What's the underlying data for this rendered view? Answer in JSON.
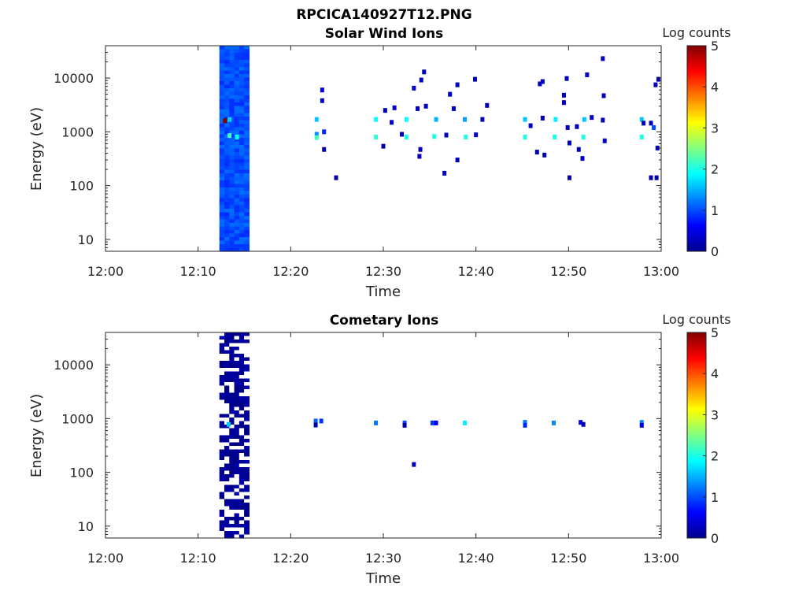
{
  "figure": {
    "title": "RPCICA140927T12.PNG"
  },
  "chart_data": [
    {
      "type": "heatmap",
      "title": "Solar Wind Ions",
      "xlabel": "Time",
      "ylabel": "Energy (eV)",
      "x_ticks": [
        "12:00",
        "12:10",
        "12:20",
        "12:30",
        "12:40",
        "12:50",
        "13:00"
      ],
      "xlim": [
        "12:00",
        "13:00"
      ],
      "y_ticks": [
        "10",
        "100",
        "1000",
        "10000"
      ],
      "ylim": [
        6,
        40000
      ],
      "y_scale": "log",
      "colorbar": {
        "label": "Log counts",
        "range": [
          0,
          5
        ],
        "ticks": [
          "0",
          "1",
          "2",
          "3",
          "4",
          "5"
        ],
        "colormap": "jet"
      },
      "band": {
        "start_min": 12.3,
        "end_min": 15.5,
        "level": 1.0
      },
      "points": [
        {
          "t": 12.9,
          "e": 1600,
          "c": 5
        },
        {
          "t": 13.4,
          "e": 1700,
          "c": 1.7
        },
        {
          "t": 13.4,
          "e": 850,
          "c": 2.2
        },
        {
          "t": 14.2,
          "e": 800,
          "c": 1.9
        },
        {
          "t": 22.8,
          "e": 1700,
          "c": 1.6
        },
        {
          "t": 22.8,
          "e": 900,
          "c": 1.3
        },
        {
          "t": 22.8,
          "e": 780,
          "c": 2.2
        },
        {
          "t": 23.4,
          "e": 6000,
          "c": 0.5
        },
        {
          "t": 23.4,
          "e": 3800,
          "c": 0.4
        },
        {
          "t": 23.6,
          "e": 1000,
          "c": 0.8
        },
        {
          "t": 23.6,
          "e": 470,
          "c": 0.2
        },
        {
          "t": 24.9,
          "e": 140,
          "c": 0.2
        },
        {
          "t": 29.2,
          "e": 800,
          "c": 2.1
        },
        {
          "t": 29.2,
          "e": 1700,
          "c": 1.9
        },
        {
          "t": 30.0,
          "e": 540,
          "c": 0.2
        },
        {
          "t": 30.2,
          "e": 2500,
          "c": 0.3
        },
        {
          "t": 30.9,
          "e": 1500,
          "c": 0.4
        },
        {
          "t": 31.2,
          "e": 2800,
          "c": 0.4
        },
        {
          "t": 32.5,
          "e": 800,
          "c": 2.0
        },
        {
          "t": 32.5,
          "e": 1700,
          "c": 1.9
        },
        {
          "t": 32.0,
          "e": 900,
          "c": 0.3
        },
        {
          "t": 33.3,
          "e": 6500,
          "c": 0.4
        },
        {
          "t": 33.7,
          "e": 2700,
          "c": 0.3
        },
        {
          "t": 34.1,
          "e": 9200,
          "c": 0.4
        },
        {
          "t": 34.4,
          "e": 13000,
          "c": 0.3
        },
        {
          "t": 34.6,
          "e": 3000,
          "c": 0.3
        },
        {
          "t": 34.0,
          "e": 470,
          "c": 0.3
        },
        {
          "t": 33.9,
          "e": 350,
          "c": 0.3
        },
        {
          "t": 35.5,
          "e": 820,
          "c": 2.0
        },
        {
          "t": 35.7,
          "e": 1700,
          "c": 1.5
        },
        {
          "t": 36.6,
          "e": 170,
          "c": 0.3
        },
        {
          "t": 36.8,
          "e": 870,
          "c": 0.3
        },
        {
          "t": 37.2,
          "e": 5000,
          "c": 0.3
        },
        {
          "t": 37.6,
          "e": 2700,
          "c": 0.3
        },
        {
          "t": 38.0,
          "e": 7500,
          "c": 0.3
        },
        {
          "t": 38.0,
          "e": 300,
          "c": 0.3
        },
        {
          "t": 38.9,
          "e": 800,
          "c": 2.0
        },
        {
          "t": 38.8,
          "e": 1700,
          "c": 1.4
        },
        {
          "t": 39.9,
          "e": 9500,
          "c": 0.3
        },
        {
          "t": 40.0,
          "e": 880,
          "c": 0.3
        },
        {
          "t": 40.7,
          "e": 1700,
          "c": 0.3
        },
        {
          "t": 41.2,
          "e": 3100,
          "c": 0.3
        },
        {
          "t": 45.3,
          "e": 800,
          "c": 2.0
        },
        {
          "t": 45.3,
          "e": 1700,
          "c": 1.6
        },
        {
          "t": 45.9,
          "e": 1300,
          "c": 0.3
        },
        {
          "t": 46.6,
          "e": 420,
          "c": 0.3
        },
        {
          "t": 46.9,
          "e": 7800,
          "c": 0.3
        },
        {
          "t": 47.2,
          "e": 8600,
          "c": 0.3
        },
        {
          "t": 47.2,
          "e": 1800,
          "c": 0.3
        },
        {
          "t": 47.4,
          "e": 370,
          "c": 0.3
        },
        {
          "t": 48.5,
          "e": 800,
          "c": 2.0
        },
        {
          "t": 48.6,
          "e": 1700,
          "c": 1.8
        },
        {
          "t": 49.5,
          "e": 3500,
          "c": 0.3
        },
        {
          "t": 49.5,
          "e": 4800,
          "c": 0.3
        },
        {
          "t": 49.8,
          "e": 9800,
          "c": 0.3
        },
        {
          "t": 49.9,
          "e": 1200,
          "c": 0.3
        },
        {
          "t": 50.1,
          "e": 620,
          "c": 0.3
        },
        {
          "t": 50.1,
          "e": 140,
          "c": 0.2
        },
        {
          "t": 50.9,
          "e": 1250,
          "c": 0.3
        },
        {
          "t": 51.1,
          "e": 470,
          "c": 0.3
        },
        {
          "t": 51.5,
          "e": 320,
          "c": 0.3
        },
        {
          "t": 51.6,
          "e": 800,
          "c": 2.0
        },
        {
          "t": 51.7,
          "e": 1700,
          "c": 1.6
        },
        {
          "t": 52.0,
          "e": 11500,
          "c": 0.4
        },
        {
          "t": 52.5,
          "e": 1850,
          "c": 0.3
        },
        {
          "t": 53.7,
          "e": 23000,
          "c": 0.3
        },
        {
          "t": 53.8,
          "e": 4700,
          "c": 0.3
        },
        {
          "t": 53.9,
          "e": 680,
          "c": 0.3
        },
        {
          "t": 53.7,
          "e": 1650,
          "c": 0.3
        },
        {
          "t": 57.9,
          "e": 800,
          "c": 2.0
        },
        {
          "t": 57.9,
          "e": 1700,
          "c": 1.6
        },
        {
          "t": 58.1,
          "e": 1450,
          "c": 0.3
        },
        {
          "t": 58.9,
          "e": 1450,
          "c": 0.3
        },
        {
          "t": 59.2,
          "e": 1200,
          "c": 1.0
        },
        {
          "t": 59.4,
          "e": 7500,
          "c": 0.3
        },
        {
          "t": 59.7,
          "e": 9500,
          "c": 0.3
        },
        {
          "t": 59.6,
          "e": 500,
          "c": 0.3
        },
        {
          "t": 58.9,
          "e": 140,
          "c": 0.2
        },
        {
          "t": 59.5,
          "e": 140,
          "c": 0.2
        }
      ]
    },
    {
      "type": "heatmap",
      "title": "Cometary Ions",
      "xlabel": "Time",
      "ylabel": "Energy (eV)",
      "x_ticks": [
        "12:00",
        "12:10",
        "12:20",
        "12:30",
        "12:40",
        "12:50",
        "13:00"
      ],
      "xlim": [
        "12:00",
        "13:00"
      ],
      "y_ticks": [
        "10",
        "100",
        "1000",
        "10000"
      ],
      "ylim": [
        6,
        40000
      ],
      "y_scale": "log",
      "colorbar": {
        "label": "Log counts",
        "range": [
          0,
          5
        ],
        "ticks": [
          "0",
          "1",
          "2",
          "3",
          "4",
          "5"
        ],
        "colormap": "jet"
      },
      "band": {
        "start_min": 12.3,
        "end_min": 15.5,
        "level": 0.05
      },
      "points": [
        {
          "t": 13.3,
          "e": 780,
          "c": 1.6
        },
        {
          "t": 22.7,
          "e": 900,
          "c": 1.1
        },
        {
          "t": 23.3,
          "e": 900,
          "c": 0.9
        },
        {
          "t": 22.7,
          "e": 760,
          "c": 0.2
        },
        {
          "t": 29.2,
          "e": 830,
          "c": 1.2
        },
        {
          "t": 32.3,
          "e": 830,
          "c": 1.0
        },
        {
          "t": 32.3,
          "e": 750,
          "c": 0.2
        },
        {
          "t": 33.3,
          "e": 140,
          "c": 0.3
        },
        {
          "t": 35.3,
          "e": 830,
          "c": 0.9
        },
        {
          "t": 35.7,
          "e": 830,
          "c": 0.6
        },
        {
          "t": 38.8,
          "e": 830,
          "c": 1.8
        },
        {
          "t": 45.3,
          "e": 850,
          "c": 1.2
        },
        {
          "t": 45.3,
          "e": 750,
          "c": 0.8
        },
        {
          "t": 48.4,
          "e": 830,
          "c": 1.3
        },
        {
          "t": 51.3,
          "e": 850,
          "c": 0.5
        },
        {
          "t": 51.6,
          "e": 780,
          "c": 0.3
        },
        {
          "t": 57.9,
          "e": 850,
          "c": 1.3
        },
        {
          "t": 57.9,
          "e": 750,
          "c": 0.5
        }
      ]
    }
  ]
}
